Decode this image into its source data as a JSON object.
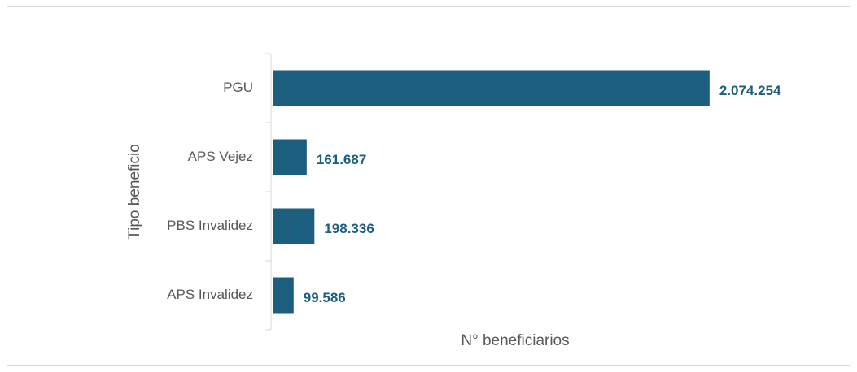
{
  "chart_data": {
    "type": "barh",
    "categories": [
      "PGU",
      "APS Vejez",
      "PBS Invalidez",
      "APS Invalidez"
    ],
    "values": [
      2074254,
      161687,
      198336,
      99586
    ],
    "value_labels": [
      "2.074.254",
      "161.687",
      "198.336",
      "99.586"
    ],
    "color": "#1b5e7d",
    "xlim": [
      0,
      2500000
    ],
    "x_label": "N° beneficiarios",
    "y_label": "Tipo beneficio"
  }
}
